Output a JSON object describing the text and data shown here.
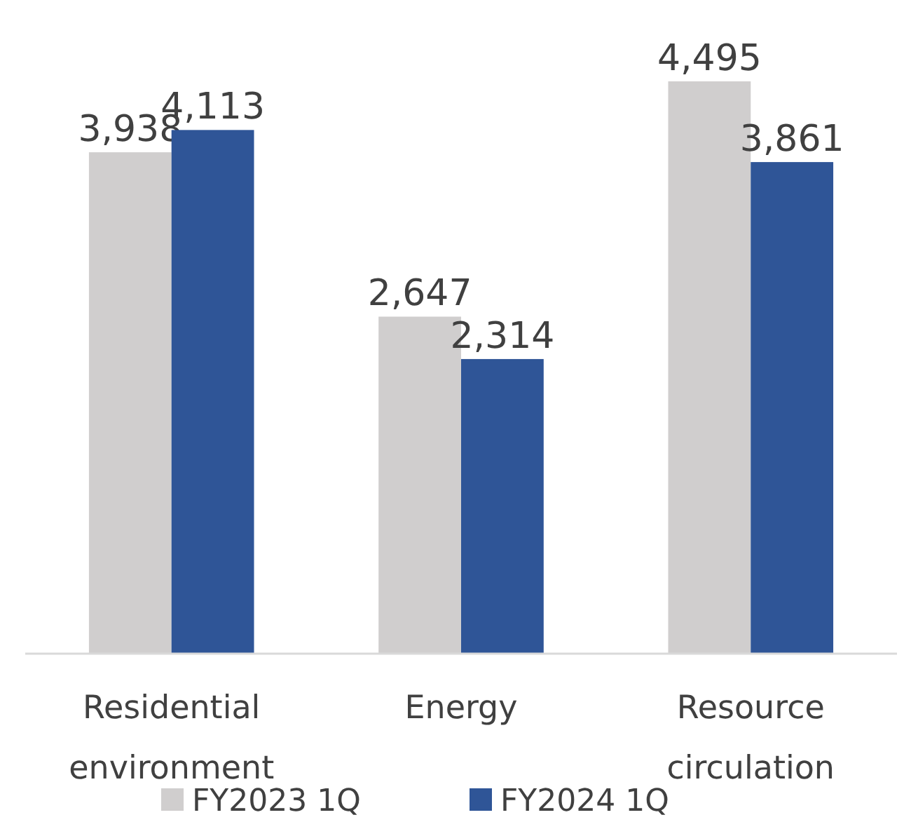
{
  "chart_data": {
    "type": "bar",
    "categories": [
      "Residential environment",
      "Energy",
      "Resource circulation"
    ],
    "series": [
      {
        "name": "FY2023 1Q",
        "color": "#d0cece",
        "values": [
          3938,
          2647,
          4495
        ],
        "value_labels": [
          "3,938",
          "2,647",
          "4,495"
        ]
      },
      {
        "name": "FY2024 1Q",
        "color": "#2f5597",
        "values": [
          4113,
          2314,
          3861
        ],
        "value_labels": [
          "4,113",
          "2,314",
          "3,861"
        ]
      }
    ],
    "legend": "bottom"
  }
}
